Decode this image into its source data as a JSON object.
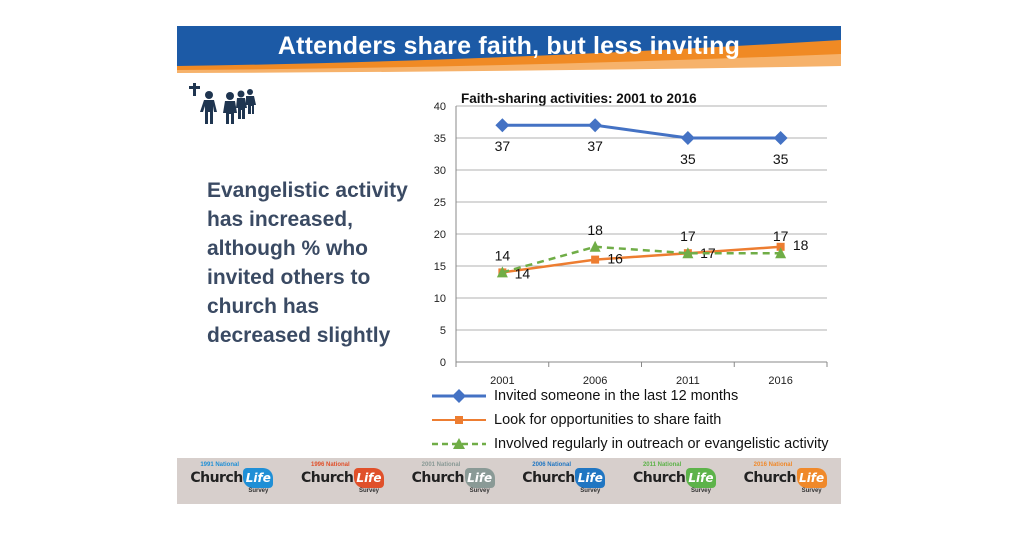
{
  "slide": {
    "title": "Attenders share faith, but less inviting",
    "body_text": "Evangelistic activity has increased, although % who invited others to church has decreased slightly",
    "colors": {
      "banner_blue": "#1c5aa6",
      "banner_orange": "#f08a24",
      "body_text": "#3a4a63"
    }
  },
  "chart_data": {
    "type": "line",
    "title": "Faith-sharing activities: 2001 to 2016",
    "categories": [
      "2001",
      "2006",
      "2011",
      "2016"
    ],
    "ylim": [
      0,
      40
    ],
    "yticks": [
      "0",
      "5",
      "10",
      "15",
      "20",
      "25",
      "30",
      "35",
      "40"
    ],
    "grid": true,
    "legend_position": "bottom",
    "xlabel": "",
    "ylabel": "",
    "series": [
      {
        "name": "Invited someone in the last 12 months",
        "values": [
          37,
          37,
          35,
          35
        ],
        "labels": [
          "37",
          "37",
          "35",
          "35"
        ],
        "color": "#4472c4",
        "marker": "diamond",
        "dash": false
      },
      {
        "name": "Look for opportunities to share faith",
        "values": [
          14,
          16,
          17,
          18
        ],
        "labels": [
          "14",
          "16",
          "17",
          "18"
        ],
        "color": "#ed7d31",
        "marker": "square",
        "dash": false
      },
      {
        "name": "Involved regularly in outreach or evangelistic activity",
        "values": [
          14,
          18,
          17,
          17
        ],
        "labels": [
          "14",
          "18",
          "17",
          "17"
        ],
        "color": "#70ad47",
        "marker": "triangle",
        "dash": true
      }
    ]
  },
  "footer": {
    "logos": [
      {
        "year": "1991 National",
        "church": "Church",
        "life": "Life",
        "sub": "Survey",
        "color": "#1f8fd6"
      },
      {
        "year": "1996 National",
        "church": "Church",
        "life": "Life",
        "sub": "Survey",
        "color": "#e0502a"
      },
      {
        "year": "2001 National",
        "church": "Church",
        "life": "Life",
        "sub": "Survey",
        "color": "#8a9a96"
      },
      {
        "year": "2006 National",
        "church": "Church",
        "life": "Life",
        "sub": "Survey",
        "color": "#2076c2"
      },
      {
        "year": "2011 National",
        "church": "Church",
        "life": "Life",
        "sub": "Survey",
        "color": "#5db34a"
      },
      {
        "year": "2016 National",
        "church": "Church",
        "life": "Life",
        "sub": "Survey",
        "color": "#f0892a"
      }
    ]
  }
}
